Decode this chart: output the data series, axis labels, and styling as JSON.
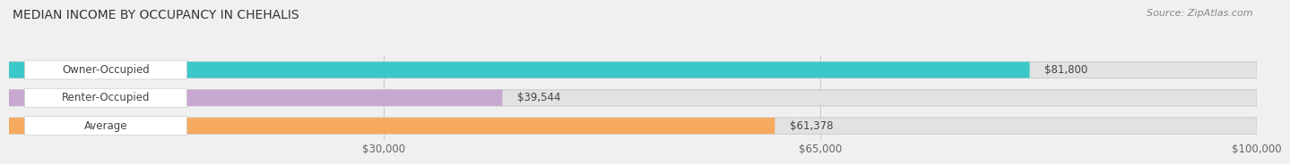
{
  "title": "MEDIAN INCOME BY OCCUPANCY IN CHEHALIS",
  "source": "Source: ZipAtlas.com",
  "categories": [
    "Owner-Occupied",
    "Renter-Occupied",
    "Average"
  ],
  "values": [
    81800,
    39544,
    61378
  ],
  "labels": [
    "$81,800",
    "$39,544",
    "$61,378"
  ],
  "bar_colors": [
    "#3cc8c8",
    "#c8a8d0",
    "#f5aa60"
  ],
  "background_color": "#f0f0f0",
  "bar_bg_color": "#e2e2e2",
  "xlim": [
    0,
    100000
  ],
  "xticks": [
    30000,
    65000,
    100000
  ],
  "xtick_labels": [
    "$30,000",
    "$65,000",
    "$100,000"
  ],
  "title_fontsize": 10,
  "label_fontsize": 8.5,
  "tick_fontsize": 8.5,
  "source_fontsize": 8,
  "bar_height": 0.58
}
